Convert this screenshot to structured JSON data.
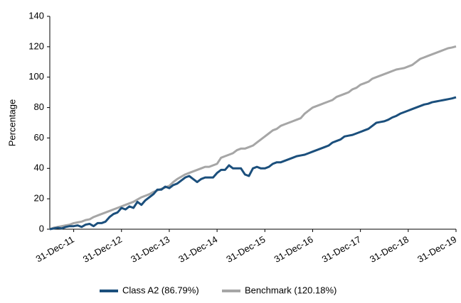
{
  "chart_data": {
    "type": "line",
    "y_label": "Percentage",
    "categories": [
      null,
      null,
      null,
      null,
      null,
      null,
      "31-Dec-11",
      null,
      null,
      null,
      null,
      null,
      null,
      null,
      null,
      null,
      null,
      null,
      "31-Dec-12",
      null,
      null,
      null,
      null,
      null,
      null,
      null,
      null,
      null,
      null,
      null,
      "31-Dec-13",
      null,
      null,
      null,
      null,
      null,
      null,
      null,
      null,
      null,
      null,
      null,
      "31-Dec-14",
      null,
      null,
      null,
      null,
      null,
      null,
      null,
      null,
      null,
      null,
      null,
      "31-Dec-15",
      null,
      null,
      null,
      null,
      null,
      null,
      null,
      null,
      null,
      null,
      null,
      "31-Dec-16",
      null,
      null,
      null,
      null,
      null,
      null,
      null,
      null,
      null,
      null,
      null,
      "31-Dec-17",
      null,
      null,
      null,
      null,
      null,
      null,
      null,
      null,
      null,
      null,
      null,
      "31-Dec-18",
      null,
      null,
      null,
      null,
      null,
      null,
      null,
      null,
      null,
      null,
      null,
      "31-Dec-19"
    ],
    "series": [
      {
        "name": "Class A2 (86.79%)",
        "color": "#1b4f7c",
        "values": [
          0,
          0.5,
          1,
          0.5,
          1.5,
          2,
          2,
          2.5,
          1.5,
          3,
          3.5,
          2,
          4,
          4,
          5,
          8,
          10,
          11,
          14,
          13,
          15,
          14,
          18,
          16,
          19,
          21,
          23,
          26,
          26,
          28,
          27,
          29,
          30,
          32,
          34,
          35,
          33,
          31,
          33,
          34,
          34,
          34,
          37,
          39,
          39,
          42,
          40,
          40,
          40,
          36,
          35,
          40,
          41,
          40,
          40,
          41,
          43,
          44,
          44,
          45,
          46,
          47,
          48,
          48.5,
          49,
          50,
          51,
          52,
          53,
          54,
          55,
          57,
          58,
          59,
          61,
          61.5,
          62,
          63,
          64,
          65,
          66,
          68,
          70,
          70.5,
          71,
          72,
          73.5,
          74.5,
          76,
          77,
          78,
          79,
          80,
          81,
          82,
          82.5,
          83.5,
          84,
          84.5,
          85,
          85.5,
          86,
          86.79
        ]
      },
      {
        "name": "Benchmark (120.18%)",
        "color": "#a6a6a6",
        "values": [
          0,
          1,
          1.5,
          2,
          2.5,
          3,
          4,
          4.5,
          5,
          6,
          6.5,
          8,
          9,
          10,
          11,
          12,
          13,
          14,
          15,
          16,
          17,
          18,
          19.5,
          21,
          22,
          23,
          24.5,
          25.5,
          26.5,
          27.5,
          28.5,
          31,
          33,
          34.5,
          36,
          37,
          38,
          39,
          40,
          41,
          41,
          42,
          43,
          47,
          48,
          49,
          50,
          52,
          53,
          53,
          54,
          55,
          57,
          59,
          61,
          63,
          65,
          66,
          68,
          69,
          70,
          71,
          72,
          73,
          76,
          78,
          80,
          81,
          82,
          83,
          84,
          85,
          87,
          88,
          89,
          90,
          92,
          93,
          95,
          96,
          97,
          99,
          100,
          101,
          102,
          103,
          104,
          105,
          105.5,
          106,
          107,
          108,
          110,
          112,
          113,
          114,
          115,
          116,
          117,
          118,
          119,
          119.5,
          120.18
        ]
      }
    ],
    "ylim": [
      0,
      140
    ],
    "yticks": [
      0,
      20,
      40,
      60,
      80,
      100,
      120,
      140
    ],
    "grid": false,
    "legend": "bottom"
  }
}
